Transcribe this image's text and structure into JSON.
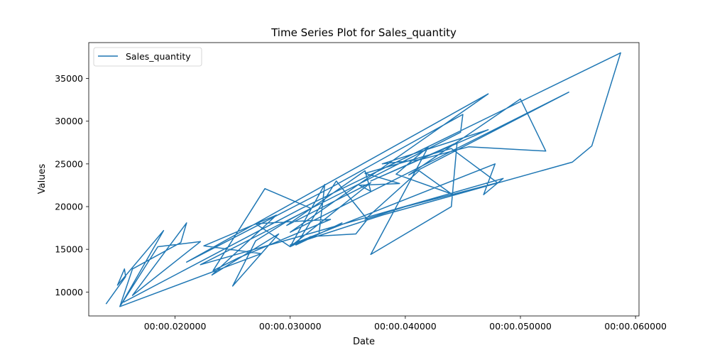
{
  "chart_data": {
    "type": "line",
    "title": "Time Series Plot for Sales_quantity",
    "xlabel": "Date",
    "ylabel": "Values",
    "x_unit": "seconds",
    "xlim": [
      0.0125,
      0.0603
    ],
    "ylim": [
      7200,
      39200
    ],
    "x_ticks": [
      {
        "value": 0.02,
        "label": "00:00.020000"
      },
      {
        "value": 0.03,
        "label": "00:00.030000"
      },
      {
        "value": 0.04,
        "label": "00:00.040000"
      },
      {
        "value": 0.05,
        "label": "00:00.050000"
      },
      {
        "value": 0.06,
        "label": "00:00.060000"
      }
    ],
    "y_ticks": [
      {
        "value": 10000,
        "label": "10000"
      },
      {
        "value": 15000,
        "label": "15000"
      },
      {
        "value": 20000,
        "label": "20000"
      },
      {
        "value": 25000,
        "label": "25000"
      },
      {
        "value": 30000,
        "label": "30000"
      },
      {
        "value": 35000,
        "label": "35000"
      }
    ],
    "grid": false,
    "legend": {
      "position": "top-left"
    },
    "series": [
      {
        "name": "Sales_quantity",
        "color": "#1f77b4",
        "points": [
          [
            0.014,
            8600
          ],
          [
            0.0157,
            11800
          ],
          [
            0.0156,
            12700
          ],
          [
            0.015,
            10800
          ],
          [
            0.019,
            17200
          ],
          [
            0.0153,
            8500
          ],
          [
            0.0185,
            15300
          ],
          [
            0.0222,
            15900
          ],
          [
            0.0163,
            9600
          ],
          [
            0.021,
            18100
          ],
          [
            0.0205,
            15800
          ],
          [
            0.0163,
            12700
          ],
          [
            0.0152,
            8300
          ],
          [
            0.0275,
            14500
          ],
          [
            0.0225,
            15400
          ],
          [
            0.0288,
            19000
          ],
          [
            0.0232,
            12000
          ],
          [
            0.029,
            16800
          ],
          [
            0.025,
            10700
          ],
          [
            0.027,
            16000
          ],
          [
            0.03,
            18500
          ],
          [
            0.0318,
            19800
          ],
          [
            0.0278,
            22100
          ],
          [
            0.0233,
            12500
          ],
          [
            0.0255,
            14000
          ],
          [
            0.0335,
            18500
          ],
          [
            0.027,
            18000
          ],
          [
            0.03,
            15300
          ],
          [
            0.0318,
            16500
          ],
          [
            0.0357,
            16800
          ],
          [
            0.0367,
            18500
          ],
          [
            0.034,
            23000
          ],
          [
            0.0305,
            15500
          ],
          [
            0.0345,
            18100
          ],
          [
            0.0325,
            16800
          ],
          [
            0.033,
            22600
          ],
          [
            0.03,
            15300
          ],
          [
            0.037,
            22800
          ],
          [
            0.0297,
            17800
          ],
          [
            0.0365,
            24200
          ],
          [
            0.037,
            21800
          ],
          [
            0.036,
            22500
          ],
          [
            0.0395,
            22700
          ],
          [
            0.0365,
            23900
          ],
          [
            0.044,
            26800
          ],
          [
            0.048,
            22800
          ],
          [
            0.04,
            20000
          ],
          [
            0.0365,
            18500
          ],
          [
            0.0412,
            24200
          ],
          [
            0.044,
            21500
          ],
          [
            0.0392,
            23800
          ],
          [
            0.042,
            27000
          ],
          [
            0.037,
            14400
          ],
          [
            0.044,
            20000
          ],
          [
            0.0445,
            27500
          ],
          [
            0.037,
            23000
          ],
          [
            0.0472,
            29000
          ],
          [
            0.038,
            25000
          ],
          [
            0.0413,
            25500
          ],
          [
            0.0455,
            27000
          ],
          [
            0.0522,
            26500
          ],
          [
            0.05,
            32600
          ],
          [
            0.0403,
            23700
          ],
          [
            0.0542,
            33400
          ],
          [
            0.03,
            17000
          ],
          [
            0.0472,
            33200
          ],
          [
            0.021,
            13500
          ],
          [
            0.0335,
            22200
          ],
          [
            0.045,
            30800
          ],
          [
            0.0448,
            28700
          ],
          [
            0.0222,
            13200
          ],
          [
            0.0485,
            23300
          ],
          [
            0.0468,
            21400
          ],
          [
            0.0478,
            25000
          ],
          [
            0.03,
            15500
          ],
          [
            0.038,
            19000
          ],
          [
            0.0545,
            25200
          ],
          [
            0.0562,
            27100
          ],
          [
            0.0587,
            38000
          ],
          [
            0.031,
            19800
          ],
          [
            0.0155,
            8800
          ]
        ]
      }
    ]
  }
}
